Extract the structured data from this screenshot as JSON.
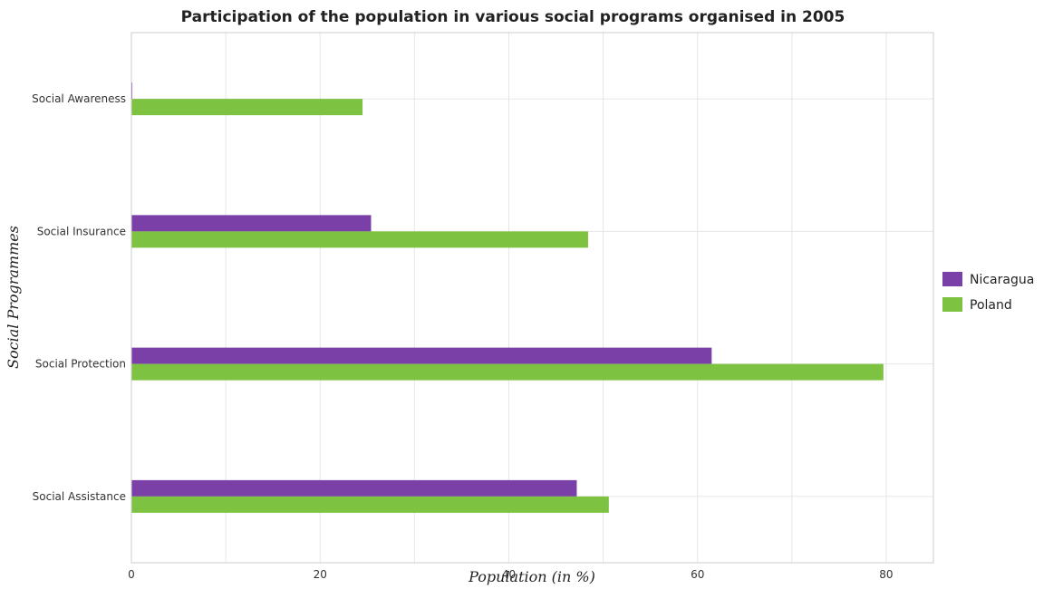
{
  "chart_data": {
    "type": "bar",
    "orientation": "horizontal",
    "title": "Participation of the population in various social programs organised in 2005",
    "xlabel": "Population (in %)",
    "ylabel": "Social Programmes",
    "categories": [
      "Social Awareness",
      "Social Insurance",
      "Social Protection",
      "Social Assistance"
    ],
    "series": [
      {
        "name": "Nicaragua",
        "color": "#7b3fa8",
        "values": [
          0.1,
          25.4,
          61.5,
          47.2
        ]
      },
      {
        "name": "Poland",
        "color": "#7ec242",
        "values": [
          24.5,
          48.4,
          79.7,
          50.6
        ]
      }
    ],
    "xlim": [
      0,
      85
    ],
    "xticks": [
      0,
      20,
      40,
      60,
      80
    ],
    "grid": true,
    "legend_position": "right"
  }
}
